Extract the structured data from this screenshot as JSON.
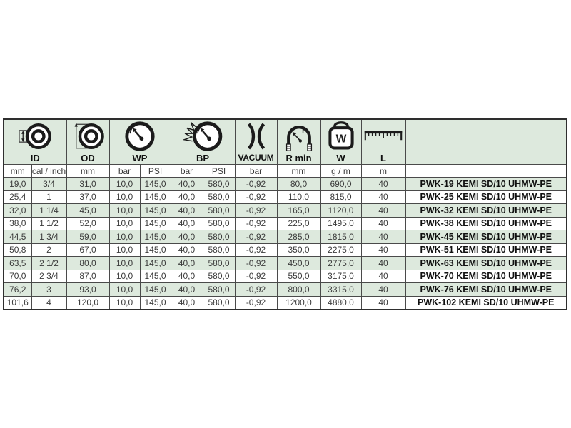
{
  "colors": {
    "header_bg": "#dde9dd",
    "row_bg": "#ffffff",
    "border": "#4a4a4a",
    "text": "#3c3c3c",
    "product_text": "#101010"
  },
  "table": {
    "header_groups": [
      {
        "label": "ID",
        "icon": "inner-diameter-icon",
        "span": 2
      },
      {
        "label": "OD",
        "icon": "outer-diameter-icon",
        "span": 1
      },
      {
        "label": "WP",
        "icon": "working-pressure-gauge-icon",
        "span": 2
      },
      {
        "label": "BP",
        "icon": "burst-pressure-gauge-icon",
        "span": 2
      },
      {
        "label": "VACUUM",
        "icon": "vacuum-icon",
        "span": 1
      },
      {
        "label": "R min",
        "icon": "bend-radius-icon",
        "span": 1
      },
      {
        "label": "W",
        "icon": "weight-icon",
        "span": 1
      },
      {
        "label": "L",
        "icon": "length-ruler-icon",
        "span": 1
      },
      {
        "label": "",
        "icon": "",
        "span": 1
      }
    ],
    "units": [
      "mm",
      "cal / inch",
      "mm",
      "bar",
      "PSI",
      "bar",
      "PSI",
      "bar",
      "mm",
      "g / m",
      "m",
      ""
    ],
    "rows": [
      [
        "19,0",
        "3/4",
        "31,0",
        "10,0",
        "145,0",
        "40,0",
        "580,0",
        "-0,92",
        "80,0",
        "690,0",
        "40",
        "PWK-19 KEMI SD/10 UHMW-PE"
      ],
      [
        "25,4",
        "1",
        "37,0",
        "10,0",
        "145,0",
        "40,0",
        "580,0",
        "-0,92",
        "110,0",
        "815,0",
        "40",
        "PWK-25 KEMI SD/10 UHMW-PE"
      ],
      [
        "32,0",
        "1 1/4",
        "45,0",
        "10,0",
        "145,0",
        "40,0",
        "580,0",
        "-0,92",
        "165,0",
        "1120,0",
        "40",
        "PWK-32 KEMI SD/10 UHMW-PE"
      ],
      [
        "38,0",
        "1 1/2",
        "52,0",
        "10,0",
        "145,0",
        "40,0",
        "580,0",
        "-0,92",
        "225,0",
        "1495,0",
        "40",
        "PWK-38 KEMI SD/10 UHMW-PE"
      ],
      [
        "44,5",
        "1 3/4",
        "59,0",
        "10,0",
        "145,0",
        "40,0",
        "580,0",
        "-0,92",
        "285,0",
        "1815,0",
        "40",
        "PWK-45 KEMI SD/10 UHMW-PE"
      ],
      [
        "50,8",
        "2",
        "67,0",
        "10,0",
        "145,0",
        "40,0",
        "580,0",
        "-0,92",
        "350,0",
        "2275,0",
        "40",
        "PWK-51 KEMI SD/10 UHMW-PE"
      ],
      [
        "63,5",
        "2 1/2",
        "80,0",
        "10,0",
        "145,0",
        "40,0",
        "580,0",
        "-0,92",
        "450,0",
        "2775,0",
        "40",
        "PWK-63 KEMI SD/10 UHMW-PE"
      ],
      [
        "70,0",
        "2 3/4",
        "87,0",
        "10,0",
        "145,0",
        "40,0",
        "580,0",
        "-0,92",
        "550,0",
        "3175,0",
        "40",
        "PWK-70 KEMI SD/10 UHMW-PE"
      ],
      [
        "76,2",
        "3",
        "93,0",
        "10,0",
        "145,0",
        "40,0",
        "580,0",
        "-0,92",
        "800,0",
        "3315,0",
        "40",
        "PWK-76 KEMI SD/10 UHMW-PE"
      ],
      [
        "101,6",
        "4",
        "120,0",
        "10,0",
        "145,0",
        "40,0",
        "580,0",
        "-0,92",
        "1200,0",
        "4880,0",
        "40",
        "PWK-102 KEMI SD/10 UHMW-PE"
      ]
    ]
  }
}
